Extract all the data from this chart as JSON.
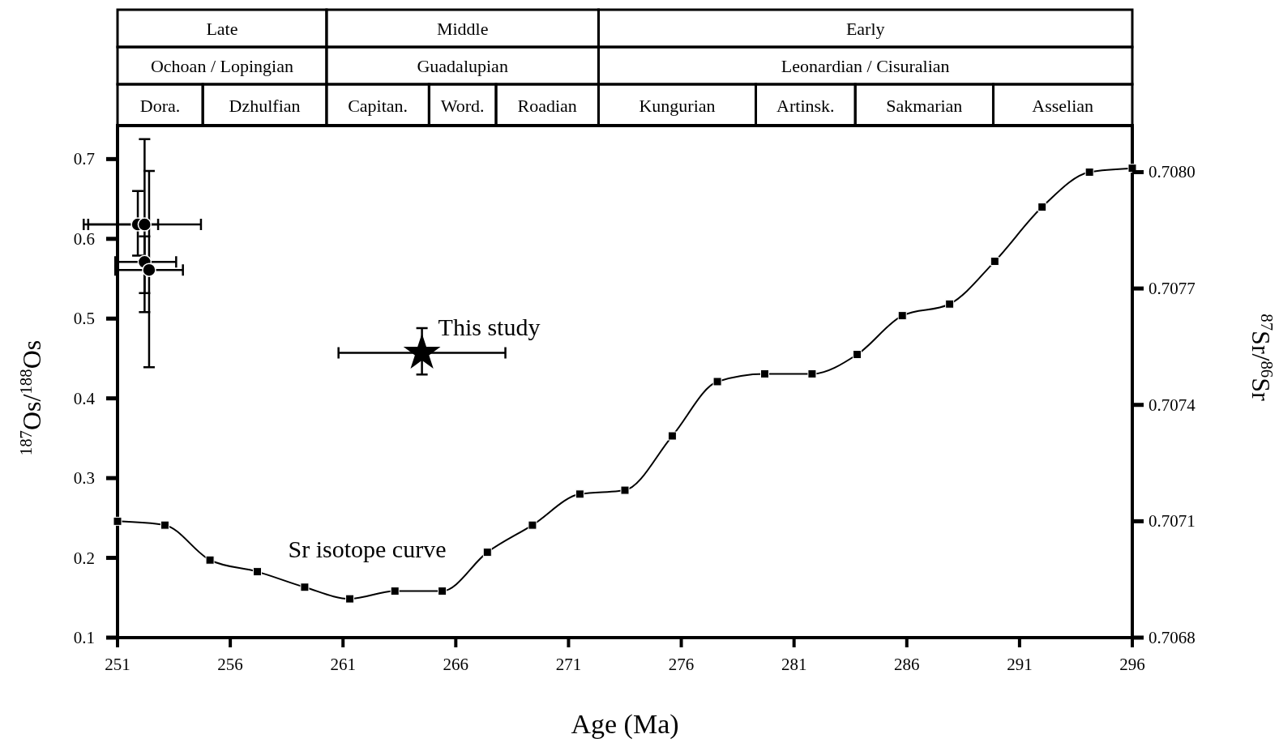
{
  "chart_data": {
    "type": "scatter",
    "xlabel": "Age (Ma)",
    "ylabel": "$^{187}$Os/$^{188}$Os",
    "y2label": "$^{87}$Sr/$^{86}$Sr",
    "xlim": [
      251,
      296
    ],
    "xticks": [
      251,
      256,
      261,
      266,
      271,
      276,
      281,
      286,
      291,
      296
    ],
    "ylim": [
      0.1,
      0.742
    ],
    "yticks": [
      0.1,
      0.2,
      0.3,
      0.4,
      0.5,
      0.6,
      0.7
    ],
    "y2lim": [
      0.7068,
      0.70812
    ],
    "y2ticks": [
      0.7068,
      0.7071,
      0.7074,
      0.7077,
      {
        "value": 0.708,
        "label": "0.7080"
      }
    ],
    "grid": false,
    "series": [
      {
        "marker": "circle",
        "color": "#000000",
        "x": [
          251.9,
          252.2,
          252.2,
          252.4
        ],
        "values": [
          0.618,
          0.618,
          0.571,
          0.561
        ],
        "errors": [
          [
            0.579,
            0.66
          ],
          [
            0.508,
            0.725
          ],
          [
            0.532,
            0.603
          ],
          [
            0.439,
            0.685
          ]
        ],
        "xerrors": [
          [
            249.5,
            252.8
          ],
          [
            249.7,
            254.7
          ],
          [
            250.9,
            253.6
          ],
          [
            250.9,
            253.9
          ]
        ]
      },
      {
        "marker": "star",
        "color": "#000000",
        "x": [
          264.5
        ],
        "values": [
          0.457
        ],
        "errors": [
          [
            0.43,
            0.488
          ]
        ],
        "xerrors": [
          [
            260.8,
            268.2
          ]
        ]
      },
      {
        "type": "line",
        "axis": "y2",
        "marker": "square",
        "color": "#000000",
        "x": [
          251.0,
          253.1,
          255.1,
          257.2,
          259.3,
          261.3,
          263.3,
          265.4,
          267.4,
          269.4,
          271.5,
          273.5,
          275.6,
          277.6,
          279.7,
          281.8,
          283.8,
          285.8,
          287.9,
          289.9,
          292.0,
          294.1,
          296.0
        ],
        "values": [
          0.7071,
          0.70709,
          0.707,
          0.70697,
          0.70693,
          0.7069,
          0.70692,
          0.70692,
          0.70702,
          0.70709,
          0.70717,
          0.70718,
          0.70732,
          0.70746,
          0.70748,
          0.70748,
          0.70753,
          0.70763,
          0.70766,
          0.70777,
          0.70791,
          0.708,
          0.70801
        ]
      }
    ],
    "annotations": [
      "Late",
      "Middle",
      "Early",
      "Ochoan / Lopingian",
      "Guadalupian",
      "Leonardian / Cisuralian",
      "Dora.",
      "Dzhulfian",
      "Capitan.",
      "Word.",
      "Roadian",
      "Kungurian",
      "Artinsk.",
      "Sakmarian",
      "Asselian",
      {
        "text": "This study",
        "x": 264.5,
        "y": 0.457
      },
      "Sr isotope curve"
    ]
  }
}
